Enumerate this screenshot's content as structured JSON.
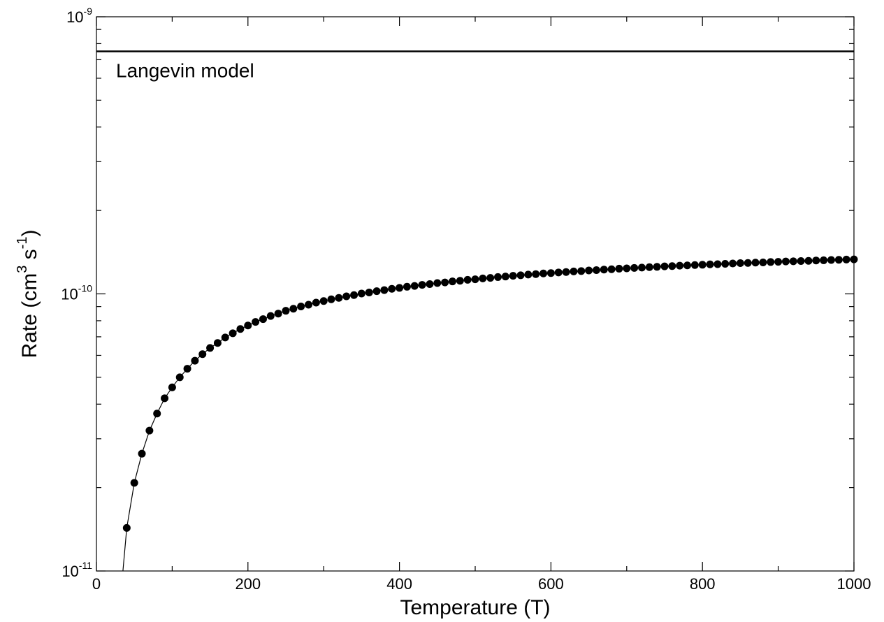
{
  "chart_data": {
    "type": "scatter",
    "xlabel": "Temperature (T)",
    "ylabel": {
      "base": "Rate (cm",
      "exp1": "3",
      "mid": " s",
      "exp2": "-1",
      "close": ")"
    },
    "xlim": [
      0,
      1000
    ],
    "ylim": [
      1e-11,
      1e-09
    ],
    "yscale": "log",
    "x_ticks": [
      {
        "value": 0,
        "label": "0"
      },
      {
        "value": 200,
        "label": "200"
      },
      {
        "value": 400,
        "label": "400"
      },
      {
        "value": 600,
        "label": "600"
      },
      {
        "value": 800,
        "label": "800"
      },
      {
        "value": 1000,
        "label": "1000"
      }
    ],
    "y_ticks": [
      {
        "value": 1e-11,
        "base": "10",
        "exp": "-11"
      },
      {
        "value": 1e-10,
        "base": "10",
        "exp": "-10"
      },
      {
        "value": 1e-09,
        "base": "10",
        "exp": "-9"
      }
    ],
    "annotation": "Langevin model",
    "langevin_value": 7.5e-10,
    "grid": false,
    "series": [
      {
        "x": [
          40,
          50,
          60,
          70,
          80,
          90,
          100,
          110,
          120,
          130,
          140,
          150,
          160,
          170,
          180,
          190,
          200,
          210,
          220,
          230,
          240,
          250,
          260,
          270,
          280,
          290,
          300,
          310,
          320,
          330,
          340,
          350,
          360,
          370,
          380,
          390,
          400,
          410,
          420,
          430,
          440,
          450,
          460,
          470,
          480,
          490,
          500,
          510,
          520,
          530,
          540,
          550,
          560,
          570,
          580,
          590,
          600,
          610,
          620,
          630,
          640,
          650,
          660,
          670,
          680,
          690,
          700,
          710,
          720,
          730,
          740,
          750,
          760,
          770,
          780,
          790,
          800,
          810,
          820,
          830,
          840,
          850,
          860,
          870,
          880,
          890,
          900,
          910,
          920,
          930,
          940,
          950,
          960,
          970,
          980,
          990,
          1000
        ],
        "y": [
          1.43e-11,
          2.08e-11,
          2.65e-11,
          3.21e-11,
          3.7e-11,
          4.2e-11,
          4.6e-11,
          5e-11,
          5.37e-11,
          5.74e-11,
          6.06e-11,
          6.38e-11,
          6.65e-11,
          6.96e-11,
          7.21e-11,
          7.47e-11,
          7.69e-11,
          7.92e-11,
          8.11e-11,
          8.32e-11,
          8.49e-11,
          8.69e-11,
          8.84e-11,
          9.01e-11,
          9.14e-11,
          9.3e-11,
          9.42e-11,
          9.56e-11,
          9.67e-11,
          9.8e-11,
          9.9e-11,
          1.003e-10,
          1.012e-10,
          1.023e-10,
          1.032e-10,
          1.043e-10,
          1.051e-10,
          1.061e-10,
          1.068e-10,
          1.078e-10,
          1.085e-10,
          1.094e-10,
          1.1e-10,
          1.109e-10,
          1.115e-10,
          1.124e-10,
          1.129e-10,
          1.137e-10,
          1.142e-10,
          1.15e-10,
          1.155e-10,
          1.162e-10,
          1.167e-10,
          1.174e-10,
          1.178e-10,
          1.185e-10,
          1.189e-10,
          1.195e-10,
          1.199e-10,
          1.205e-10,
          1.209e-10,
          1.215e-10,
          1.218e-10,
          1.224e-10,
          1.227e-10,
          1.233e-10,
          1.236e-10,
          1.241e-10,
          1.244e-10,
          1.249e-10,
          1.252e-10,
          1.257e-10,
          1.26e-10,
          1.264e-10,
          1.267e-10,
          1.271e-10,
          1.274e-10,
          1.278e-10,
          1.28e-10,
          1.284e-10,
          1.287e-10,
          1.291e-10,
          1.293e-10,
          1.297e-10,
          1.299e-10,
          1.303e-10,
          1.305e-10,
          1.309e-10,
          1.311e-10,
          1.314e-10,
          1.316e-10,
          1.32e-10,
          1.322e-10,
          1.325e-10,
          1.327e-10,
          1.33e-10,
          1.332e-10
        ]
      }
    ]
  }
}
